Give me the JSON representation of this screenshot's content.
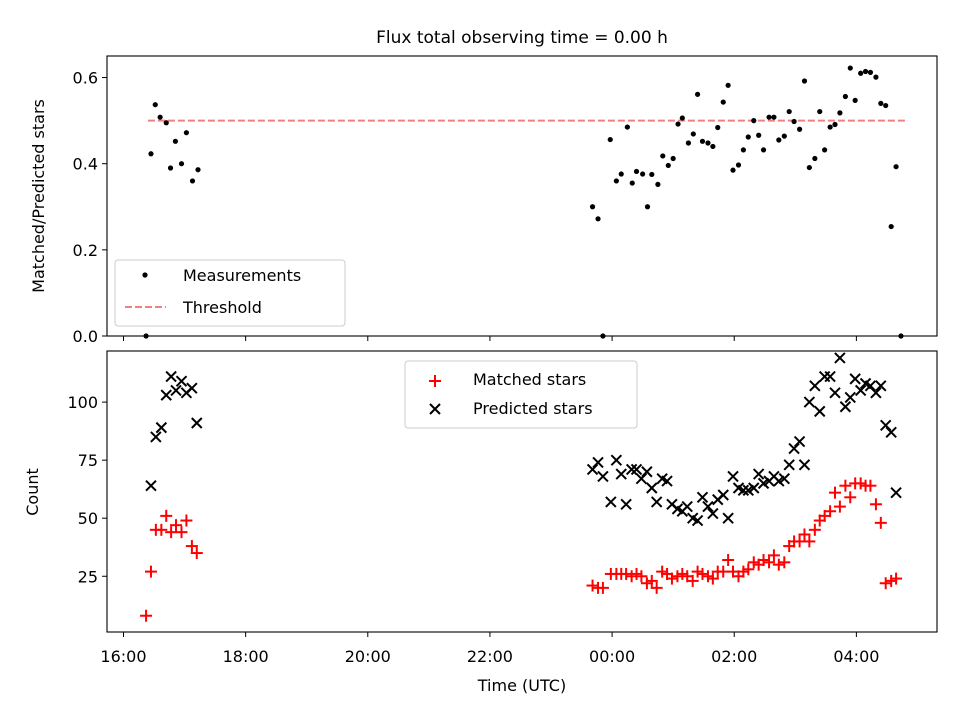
{
  "chart_data": [
    {
      "type": "scatter",
      "title": "Flux total observing time = 0.00 h",
      "xlabel": "",
      "ylabel": "Matched/Predicted stars",
      "ylim": [
        0,
        0.65
      ],
      "yticks": [
        "0.0",
        "0.2",
        "0.4",
        "0.6"
      ],
      "xlim_hours": [
        15.73,
        29.32
      ],
      "x_units": "hours since 00:00 UTC of first day (values > 24 are after midnight)",
      "legend": {
        "placement": "lower-left",
        "entries": [
          "Measurements",
          "Threshold"
        ]
      },
      "threshold": {
        "name": "Threshold",
        "value": 0.5,
        "x_range": [
          16.4,
          29.5
        ],
        "color": "#f08080",
        "style": "dashed"
      },
      "series": [
        {
          "name": "Measurements",
          "color": "#000000",
          "marker": "dot",
          "points": [
            [
              16.37,
              0.0
            ],
            [
              16.45,
              0.423
            ],
            [
              16.52,
              0.537
            ],
            [
              16.6,
              0.508
            ],
            [
              16.7,
              0.495
            ],
            [
              16.77,
              0.39
            ],
            [
              16.85,
              0.452
            ],
            [
              16.95,
              0.4
            ],
            [
              17.03,
              0.472
            ],
            [
              17.13,
              0.36
            ],
            [
              17.22,
              0.386
            ],
            [
              23.68,
              0.3
            ],
            [
              23.77,
              0.272
            ],
            [
              23.85,
              0.0
            ],
            [
              23.97,
              0.456
            ],
            [
              24.07,
              0.36
            ],
            [
              24.15,
              0.376
            ],
            [
              24.25,
              0.485
            ],
            [
              24.33,
              0.355
            ],
            [
              24.4,
              0.382
            ],
            [
              24.5,
              0.376
            ],
            [
              24.58,
              0.3
            ],
            [
              24.65,
              0.375
            ],
            [
              24.75,
              0.352
            ],
            [
              24.83,
              0.418
            ],
            [
              24.92,
              0.396
            ],
            [
              25.0,
              0.412
            ],
            [
              25.08,
              0.492
            ],
            [
              25.15,
              0.506
            ],
            [
              25.25,
              0.448
            ],
            [
              25.33,
              0.469
            ],
            [
              25.4,
              0.561
            ],
            [
              25.48,
              0.452
            ],
            [
              25.57,
              0.448
            ],
            [
              25.65,
              0.44
            ],
            [
              25.73,
              0.484
            ],
            [
              25.82,
              0.543
            ],
            [
              25.9,
              0.582
            ],
            [
              25.98,
              0.385
            ],
            [
              26.07,
              0.397
            ],
            [
              26.15,
              0.432
            ],
            [
              26.23,
              0.462
            ],
            [
              26.32,
              0.5
            ],
            [
              26.4,
              0.466
            ],
            [
              26.48,
              0.432
            ],
            [
              26.57,
              0.508
            ],
            [
              26.65,
              0.508
            ],
            [
              26.73,
              0.455
            ],
            [
              26.82,
              0.464
            ],
            [
              26.9,
              0.521
            ],
            [
              26.98,
              0.498
            ],
            [
              27.07,
              0.48
            ],
            [
              27.15,
              0.592
            ],
            [
              27.23,
              0.391
            ],
            [
              27.32,
              0.412
            ],
            [
              27.4,
              0.521
            ],
            [
              27.48,
              0.432
            ],
            [
              27.57,
              0.485
            ],
            [
              27.65,
              0.491
            ],
            [
              27.73,
              0.518
            ],
            [
              27.82,
              0.556
            ],
            [
              27.9,
              0.622
            ],
            [
              27.98,
              0.547
            ],
            [
              28.07,
              0.61
            ],
            [
              28.15,
              0.614
            ],
            [
              28.23,
              0.612
            ],
            [
              28.32,
              0.601
            ],
            [
              28.4,
              0.54
            ],
            [
              28.48,
              0.535
            ],
            [
              28.57,
              0.254
            ],
            [
              28.65,
              0.393
            ],
            [
              28.73,
              0.0
            ]
          ]
        }
      ]
    },
    {
      "type": "scatter",
      "title": "",
      "xlabel": "Time (UTC)",
      "ylabel": "Count",
      "ylim": [
        1,
        122
      ],
      "yticks": [
        "25",
        "50",
        "75",
        "100"
      ],
      "xticks": [
        "16:00",
        "18:00",
        "20:00",
        "22:00",
        "00:00",
        "02:00",
        "04:00"
      ],
      "xlim_hours": [
        15.73,
        29.32
      ],
      "legend": {
        "placement": "upper-center",
        "entries": [
          "Matched stars",
          "Predicted stars"
        ]
      },
      "series": [
        {
          "name": "Matched stars",
          "color": "#ff0000",
          "marker": "plus",
          "points": [
            [
              16.37,
              8
            ],
            [
              16.45,
              27
            ],
            [
              16.53,
              45
            ],
            [
              16.62,
              45
            ],
            [
              16.7,
              51
            ],
            [
              16.78,
              44
            ],
            [
              16.86,
              47
            ],
            [
              16.95,
              44
            ],
            [
              17.03,
              49
            ],
            [
              17.12,
              38
            ],
            [
              17.2,
              35
            ],
            [
              23.68,
              21
            ],
            [
              23.77,
              20
            ],
            [
              23.85,
              20
            ],
            [
              23.98,
              26
            ],
            [
              24.07,
              26
            ],
            [
              24.15,
              26
            ],
            [
              24.23,
              26
            ],
            [
              24.32,
              25
            ],
            [
              24.4,
              26
            ],
            [
              24.48,
              25
            ],
            [
              24.57,
              22
            ],
            [
              24.65,
              23
            ],
            [
              24.73,
              20
            ],
            [
              24.82,
              27
            ],
            [
              24.9,
              26
            ],
            [
              24.98,
              24
            ],
            [
              25.07,
              25
            ],
            [
              25.15,
              26
            ],
            [
              25.23,
              25
            ],
            [
              25.32,
              23
            ],
            [
              25.4,
              27
            ],
            [
              25.48,
              26
            ],
            [
              25.57,
              25
            ],
            [
              25.65,
              24
            ],
            [
              25.73,
              27
            ],
            [
              25.82,
              27
            ],
            [
              25.9,
              32
            ],
            [
              25.98,
              27
            ],
            [
              26.07,
              25
            ],
            [
              26.15,
              27
            ],
            [
              26.23,
              28
            ],
            [
              26.32,
              31
            ],
            [
              26.4,
              30
            ],
            [
              26.48,
              32
            ],
            [
              26.57,
              31
            ],
            [
              26.65,
              34
            ],
            [
              26.73,
              30
            ],
            [
              26.82,
              31
            ],
            [
              26.9,
              38
            ],
            [
              26.98,
              40
            ],
            [
              27.07,
              40
            ],
            [
              27.15,
              43
            ],
            [
              27.23,
              40
            ],
            [
              27.32,
              45
            ],
            [
              27.4,
              49
            ],
            [
              27.48,
              51
            ],
            [
              27.57,
              53
            ],
            [
              27.65,
              61
            ],
            [
              27.73,
              55
            ],
            [
              27.82,
              64
            ],
            [
              27.9,
              59
            ],
            [
              27.98,
              65
            ],
            [
              28.07,
              65
            ],
            [
              28.15,
              64
            ],
            [
              28.23,
              64
            ],
            [
              28.32,
              56
            ],
            [
              28.4,
              48
            ],
            [
              28.48,
              22
            ],
            [
              28.57,
              23
            ],
            [
              28.65,
              24
            ]
          ]
        },
        {
          "name": "Predicted stars",
          "color": "#000000",
          "marker": "x",
          "points": [
            [
              16.45,
              64
            ],
            [
              16.53,
              85
            ],
            [
              16.62,
              89
            ],
            [
              16.7,
              103
            ],
            [
              16.78,
              111
            ],
            [
              16.86,
              105
            ],
            [
              16.95,
              109
            ],
            [
              17.03,
              104
            ],
            [
              17.12,
              106
            ],
            [
              17.2,
              91
            ],
            [
              23.68,
              71
            ],
            [
              23.77,
              74
            ],
            [
              23.85,
              68
            ],
            [
              23.98,
              57
            ],
            [
              24.07,
              75
            ],
            [
              24.15,
              69
            ],
            [
              24.23,
              56
            ],
            [
              24.32,
              71
            ],
            [
              24.4,
              71
            ],
            [
              24.48,
              67
            ],
            [
              24.57,
              70
            ],
            [
              24.65,
              63
            ],
            [
              24.73,
              57
            ],
            [
              24.82,
              67
            ],
            [
              24.9,
              66
            ],
            [
              24.98,
              56
            ],
            [
              25.07,
              54
            ],
            [
              25.15,
              53
            ],
            [
              25.23,
              55
            ],
            [
              25.32,
              50
            ],
            [
              25.4,
              49
            ],
            [
              25.48,
              59
            ],
            [
              25.57,
              55
            ],
            [
              25.65,
              52
            ],
            [
              25.73,
              58
            ],
            [
              25.82,
              60
            ],
            [
              25.9,
              50
            ],
            [
              25.98,
              68
            ],
            [
              26.07,
              63
            ],
            [
              26.15,
              62
            ],
            [
              26.23,
              62
            ],
            [
              26.32,
              63
            ],
            [
              26.4,
              69
            ],
            [
              26.48,
              65
            ],
            [
              26.57,
              66
            ],
            [
              26.65,
              68
            ],
            [
              26.73,
              66
            ],
            [
              26.82,
              67
            ],
            [
              26.9,
              73
            ],
            [
              26.98,
              80
            ],
            [
              27.07,
              83
            ],
            [
              27.15,
              73
            ],
            [
              27.23,
              100
            ],
            [
              27.32,
              107
            ],
            [
              27.4,
              96
            ],
            [
              27.48,
              111
            ],
            [
              27.57,
              111
            ],
            [
              27.65,
              104
            ],
            [
              27.73,
              119
            ],
            [
              27.82,
              98
            ],
            [
              27.9,
              102
            ],
            [
              27.98,
              110
            ],
            [
              28.07,
              105
            ],
            [
              28.15,
              108
            ],
            [
              28.23,
              107
            ],
            [
              28.32,
              104
            ],
            [
              28.4,
              107
            ],
            [
              28.48,
              90
            ],
            [
              28.57,
              87
            ],
            [
              28.65,
              61
            ]
          ]
        }
      ]
    }
  ]
}
